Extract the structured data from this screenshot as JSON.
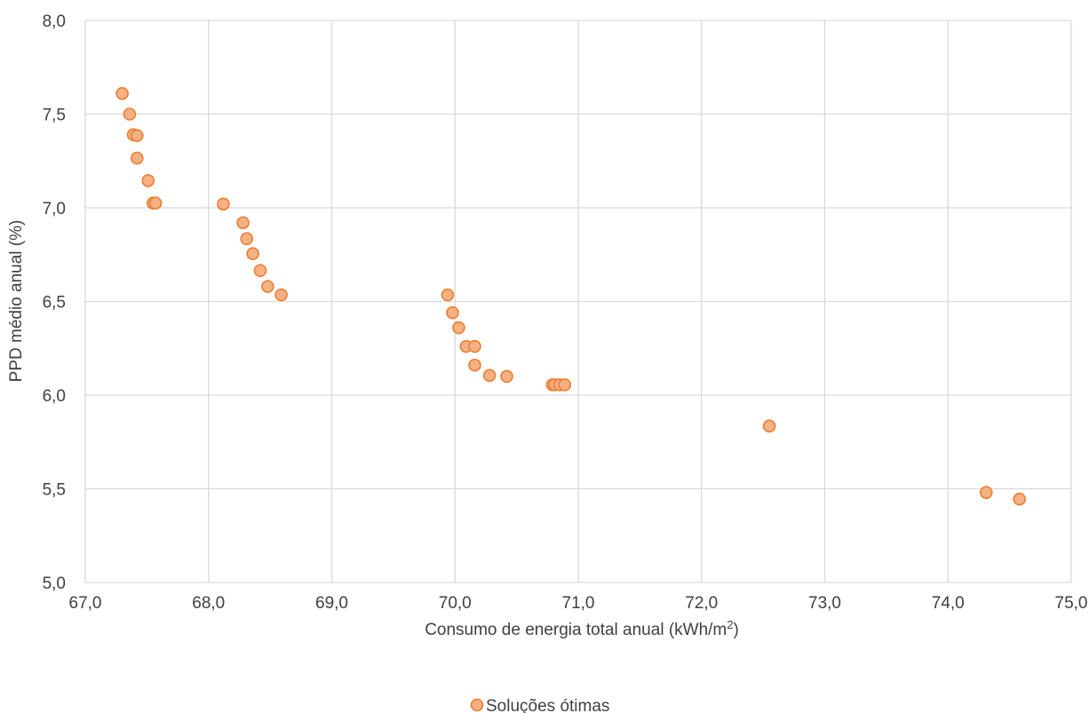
{
  "chart_data": {
    "type": "scatter",
    "xlabel_main": "Consumo de energia total anual (kWh/m",
    "xlabel_sup": "2",
    "xlabel_close": ")",
    "ylabel": "PPD médio anual (%)",
    "xlim": [
      67,
      75
    ],
    "ylim": [
      5,
      8
    ],
    "x_ticks": [
      67,
      68,
      69,
      70,
      71,
      72,
      73,
      74,
      75
    ],
    "y_ticks": [
      5,
      5.5,
      6,
      6.5,
      7,
      7.5,
      8
    ],
    "x_tick_labels": [
      "67,0",
      "68,0",
      "69,0",
      "70,0",
      "71,0",
      "72,0",
      "73,0",
      "74,0",
      "75,0"
    ],
    "y_tick_labels": [
      "5,0",
      "5,5",
      "6,0",
      "6,5",
      "7,0",
      "7,5",
      "8,0"
    ],
    "grid": true,
    "legend_position": "bottom",
    "series": [
      {
        "name": "Soluções ótimas",
        "color_fill": "#f4b183",
        "color_edge": "#ed7d31",
        "points": [
          {
            "x": 67.3,
            "y": 7.61
          },
          {
            "x": 67.36,
            "y": 7.5
          },
          {
            "x": 67.39,
            "y": 7.39
          },
          {
            "x": 67.42,
            "y": 7.385
          },
          {
            "x": 67.42,
            "y": 7.265
          },
          {
            "x": 67.51,
            "y": 7.145
          },
          {
            "x": 67.55,
            "y": 7.025
          },
          {
            "x": 67.57,
            "y": 7.025
          },
          {
            "x": 68.12,
            "y": 7.02
          },
          {
            "x": 68.28,
            "y": 6.92
          },
          {
            "x": 68.31,
            "y": 6.835
          },
          {
            "x": 68.36,
            "y": 6.755
          },
          {
            "x": 68.42,
            "y": 6.665
          },
          {
            "x": 68.48,
            "y": 6.58
          },
          {
            "x": 68.59,
            "y": 6.535
          },
          {
            "x": 69.94,
            "y": 6.535
          },
          {
            "x": 69.98,
            "y": 6.44
          },
          {
            "x": 70.03,
            "y": 6.36
          },
          {
            "x": 70.09,
            "y": 6.26
          },
          {
            "x": 70.16,
            "y": 6.26
          },
          {
            "x": 70.16,
            "y": 6.16
          },
          {
            "x": 70.28,
            "y": 6.105
          },
          {
            "x": 70.42,
            "y": 6.1
          },
          {
            "x": 70.79,
            "y": 6.055
          },
          {
            "x": 70.81,
            "y": 6.055
          },
          {
            "x": 70.85,
            "y": 6.055
          },
          {
            "x": 70.89,
            "y": 6.055
          },
          {
            "x": 72.55,
            "y": 5.835
          },
          {
            "x": 74.31,
            "y": 5.48
          },
          {
            "x": 74.58,
            "y": 5.445
          }
        ]
      }
    ]
  }
}
